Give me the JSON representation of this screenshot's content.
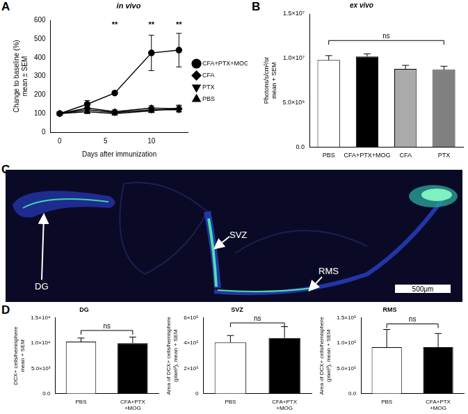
{
  "chart_data": [
    {
      "panel": "A",
      "type": "line",
      "title": "in vivo",
      "xlabel": "Days after immunization",
      "ylabel": [
        "Change to baseline (%)",
        "mean ± SEM"
      ],
      "x": [
        0,
        3,
        6,
        10,
        13
      ],
      "xlim": [
        -1,
        14
      ],
      "xticks": [
        0,
        5,
        10
      ],
      "ylim": [
        0,
        600
      ],
      "yticks": [
        0,
        100,
        200,
        300,
        400,
        500,
        600
      ],
      "legend": "right",
      "series": [
        {
          "name": "CFA+PTX+MOG",
          "color": "#000000",
          "marker": "circle",
          "values": [
            100,
            150,
            210,
            425,
            440
          ],
          "errors": [
            0,
            20,
            5,
            95,
            90
          ]
        },
        {
          "name": "CFA",
          "color": "#000000",
          "marker": "diamond",
          "values": [
            100,
            130,
            110,
            130,
            125
          ],
          "errors": [
            0,
            15,
            10,
            12,
            15
          ]
        },
        {
          "name": "PTX",
          "color": "#000000",
          "marker": "triangle-down",
          "values": [
            100,
            120,
            105,
            120,
            120
          ],
          "errors": [
            0,
            12,
            8,
            10,
            12
          ]
        },
        {
          "name": "PBS",
          "color": "#000000",
          "marker": "triangle-up",
          "values": [
            100,
            110,
            100,
            115,
            130
          ],
          "errors": [
            0,
            10,
            8,
            10,
            15
          ]
        }
      ],
      "annotations": [
        {
          "text": "**",
          "x": 6,
          "y": 555
        },
        {
          "text": "**",
          "x": 10,
          "y": 555
        },
        {
          "text": "**",
          "x": 13,
          "y": 555
        }
      ]
    },
    {
      "panel": "B",
      "type": "bar",
      "title": "ex vivo",
      "ylabel": [
        "Photons/s/cm²/sr",
        "mean + SEM"
      ],
      "categories": [
        "PBS",
        "CFA+PTX+MOG",
        "CFA",
        "PTX"
      ],
      "values": [
        9800000,
        10200000,
        8800000,
        8700000
      ],
      "errors": [
        500000,
        300000,
        400000,
        400000
      ],
      "colors": [
        "#ffffff",
        "#000000",
        "#aaaaaa",
        "#808080"
      ],
      "ylim": [
        0,
        15000000
      ],
      "yticks": [
        {
          "value": 0,
          "label": "0.0"
        },
        {
          "value": 5000000,
          "label": "5.0×10⁶"
        },
        {
          "value": 10000000,
          "label": "1.0×10⁷"
        },
        {
          "value": 15000000,
          "label": "1.5×10⁷"
        }
      ],
      "annotations": [
        {
          "text": "ns",
          "x": [
            "PBS",
            "PTX"
          ],
          "y": 12000000
        }
      ]
    },
    {
      "panel": "D",
      "type": "bar",
      "title": "DG",
      "ylabel": [
        "DCX+ cells/hemisphere",
        "mean + SEM"
      ],
      "categories": [
        "PBS",
        [
          "CFA+PTX",
          "+MOG"
        ]
      ],
      "values": [
        10300,
        10000
      ],
      "errors": [
        700,
        1200
      ],
      "colors": [
        "#ffffff",
        "#000000"
      ],
      "ylim": [
        0,
        15000
      ],
      "yticks": [
        {
          "value": 0,
          "label": "0.0"
        },
        {
          "value": 5000,
          "label": "5.0×10³"
        },
        {
          "value": 10000,
          "label": "1.0×10⁴"
        },
        {
          "value": 15000,
          "label": "1.5×10⁴"
        }
      ],
      "annotations": [
        {
          "text": "ns",
          "x": [
            0,
            1
          ],
          "y": 12500
        }
      ]
    },
    {
      "type": "bar",
      "title": "SVZ",
      "ylabel": [
        "Area of DCX+ cells/hemisphere",
        "(pixel²), mean + SEM"
      ],
      "categories": [
        "PBS",
        [
          "CFA+PTX",
          "+MOG"
        ]
      ],
      "values": [
        405000,
        440000
      ],
      "errors": [
        55000,
        90000
      ],
      "colors": [
        "#ffffff",
        "#000000"
      ],
      "ylim": [
        0,
        600000
      ],
      "yticks": [
        0,
        {
          "value": 200000,
          "label": "2×10⁵"
        },
        {
          "value": 400000,
          "label": "4×10⁵"
        },
        {
          "value": 600000,
          "label": "6×10⁵"
        }
      ],
      "annotations": [
        {
          "text": "ns",
          "x": [
            0,
            1
          ],
          "y": 560000
        }
      ]
    },
    {
      "type": "bar",
      "title": "RMS",
      "ylabel": [
        "Area of DCX+ cells/hemisphere",
        "(pixel²), mean + SEM"
      ],
      "categories": [
        "PBS",
        [
          "CFA+PTX",
          "+MOG"
        ]
      ],
      "values": [
        920000,
        920000
      ],
      "errors": [
        350000,
        270000
      ],
      "colors": [
        "#ffffff",
        "#000000"
      ],
      "ylim": [
        0,
        1500000
      ],
      "yticks": [
        {
          "value": 0,
          "label": "0.0"
        },
        {
          "value": 500000,
          "label": "5.0×10⁵"
        },
        {
          "value": 1000000,
          "label": "1.0×10⁶"
        },
        {
          "value": 1500000,
          "label": "1.5×10⁶"
        }
      ],
      "annotations": [
        {
          "text": "ns",
          "x": [
            0,
            1
          ],
          "y": 1380000
        }
      ]
    }
  ],
  "image": {
    "panel": "C",
    "labels": [
      "DG",
      "SVZ",
      "RMS"
    ],
    "scale_bar": "500μm"
  }
}
